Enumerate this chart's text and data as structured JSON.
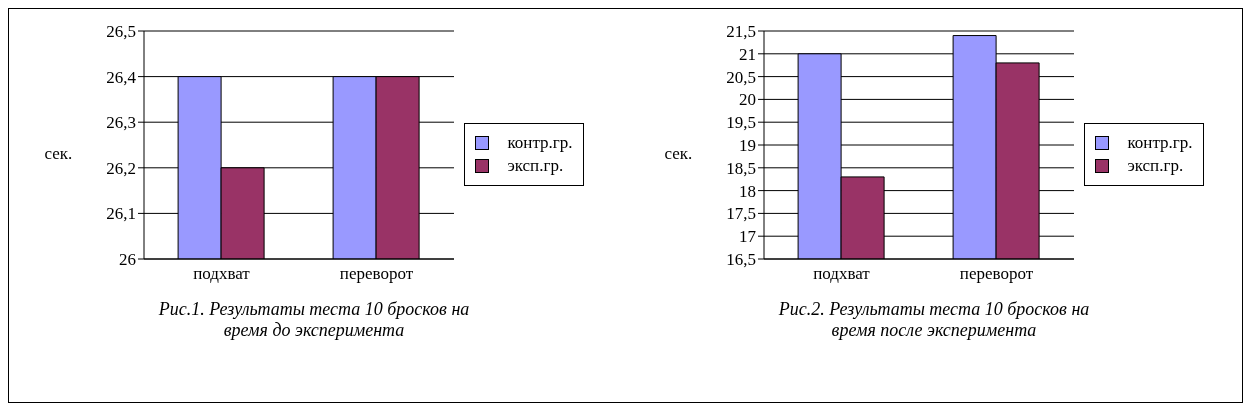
{
  "chart_data": [
    {
      "type": "bar",
      "ylabel": "сек.",
      "categories": [
        "подхват",
        "переворот"
      ],
      "series": [
        {
          "name": "контр.гр.",
          "color": "#9999ff",
          "values": [
            26.4,
            26.4
          ]
        },
        {
          "name": "эксп.гр.",
          "color": "#993366",
          "values": [
            26.2,
            26.4
          ]
        }
      ],
      "ylim": [
        26,
        26.5
      ],
      "yticks": [
        {
          "value": 26,
          "label": "26"
        },
        {
          "value": 26.1,
          "label": "26,1"
        },
        {
          "value": 26.2,
          "label": "26,2"
        },
        {
          "value": 26.3,
          "label": "26,3"
        },
        {
          "value": 26.4,
          "label": "26,4"
        },
        {
          "value": 26.5,
          "label": "26,5"
        }
      ],
      "grid": "y",
      "legend": "right",
      "annotations": [
        "Рис.1. Результаты теста 10 бросков на время до эксперимента"
      ]
    },
    {
      "type": "bar",
      "ylabel": "сек.",
      "categories": [
        "подхват",
        "переворот"
      ],
      "series": [
        {
          "name": "контр.гр.",
          "color": "#9999ff",
          "values": [
            21.0,
            21.4
          ]
        },
        {
          "name": "эксп.гр.",
          "color": "#993366",
          "values": [
            18.3,
            20.8
          ]
        }
      ],
      "ylim": [
        16.5,
        21.5
      ],
      "yticks": [
        {
          "value": 16.5,
          "label": "16,5"
        },
        17,
        {
          "value": 17.5,
          "label": "17,5"
        },
        18,
        {
          "value": 18.5,
          "label": "18,5"
        },
        19,
        {
          "value": 19.5,
          "label": "19,5"
        },
        20,
        {
          "value": 20.5,
          "label": "20,5"
        },
        21,
        {
          "value": 21.5,
          "label": "21,5"
        }
      ],
      "grid": "y",
      "legend": "right",
      "annotations": [
        "Рис.2. Результаты теста 10 бросков на время после эксперимента"
      ]
    }
  ]
}
